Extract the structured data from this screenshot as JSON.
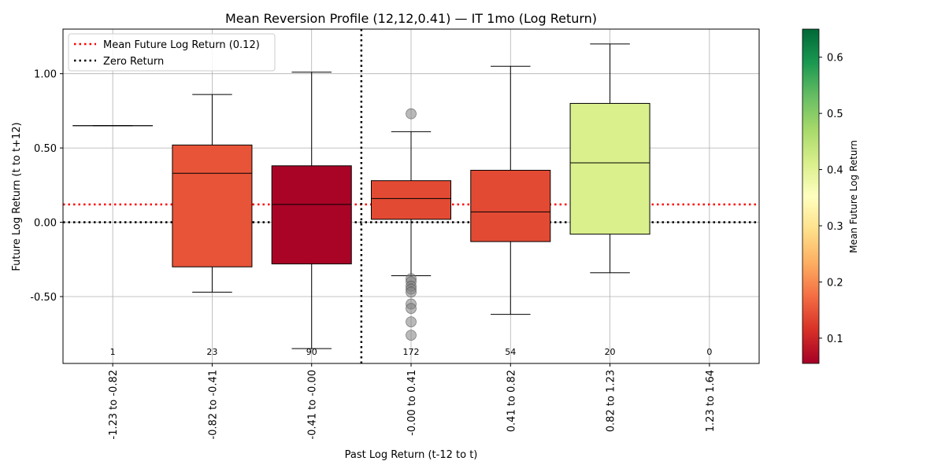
{
  "chart_data": {
    "type": "box",
    "title": "Mean Reversion Profile (12,12,0.41) — IT 1mo (Log Return)",
    "xlabel": "Past Log Return (t-12 to t)",
    "ylabel": "Future Log Return (t to t+12)",
    "ylim": [
      -0.95,
      1.3
    ],
    "yticks": [
      -0.5,
      0.0,
      0.5,
      1.0
    ],
    "ytick_labels": [
      "-0.50",
      "0.00",
      "0.50",
      "1.00"
    ],
    "grid": true,
    "categories": [
      "-1.23 to -0.82",
      "-0.82 to -0.41",
      "-0.41 to -0.00",
      "-0.00 to 0.41",
      "0.41 to 0.82",
      "0.82 to 1.23",
      "1.23 to 1.64"
    ],
    "boxes": [
      {
        "category": "-1.23 to -0.82",
        "count": "1",
        "whisker_low": 0.65,
        "q1": 0.65,
        "median": 0.65,
        "q3": 0.65,
        "whisker_high": 0.65,
        "mean": 0.65,
        "outliers": []
      },
      {
        "category": "-0.82 to -0.41",
        "count": "23",
        "whisker_low": -0.47,
        "q1": -0.3,
        "median": 0.33,
        "q3": 0.52,
        "whisker_high": 0.86,
        "mean": 0.15,
        "outliers": []
      },
      {
        "category": "-0.41 to -0.00",
        "count": "90",
        "whisker_low": -0.85,
        "q1": -0.28,
        "median": 0.12,
        "q3": 0.38,
        "whisker_high": 1.01,
        "mean": 0.06,
        "outliers": []
      },
      {
        "category": "-0.00 to 0.41",
        "count": "172",
        "whisker_low": -0.36,
        "q1": 0.02,
        "median": 0.16,
        "q3": 0.28,
        "whisker_high": 0.61,
        "mean": 0.14,
        "outliers": [
          0.73,
          -0.38,
          -0.4,
          -0.43,
          -0.45,
          -0.47,
          -0.55,
          -0.58,
          -0.67,
          -0.76
        ]
      },
      {
        "category": "0.41 to 0.82",
        "count": "54",
        "whisker_low": -0.62,
        "q1": -0.13,
        "median": 0.07,
        "q3": 0.35,
        "whisker_high": 1.05,
        "mean": 0.14,
        "outliers": []
      },
      {
        "category": "0.82 to 1.23",
        "count": "20",
        "whisker_low": -0.34,
        "q1": -0.08,
        "median": 0.4,
        "q3": 0.8,
        "whisker_high": 1.2,
        "mean": 0.41,
        "outliers": []
      },
      {
        "category": "1.23 to 1.64",
        "count": "0",
        "whisker_low": null,
        "q1": null,
        "median": null,
        "q3": null,
        "whisker_high": null,
        "mean": null,
        "outliers": []
      }
    ],
    "reference_lines": {
      "horizontal": [
        {
          "name": "Mean Future Log Return (0.12)",
          "y": 0.12,
          "color": "#ff0000",
          "style": "dotted"
        },
        {
          "name": "Zero Return",
          "y": 0.0,
          "color": "#000000",
          "style": "dotted"
        }
      ],
      "vertical": {
        "position": "between -0.41 to -0.00 and -0.00 to 0.41",
        "color": "#000000",
        "style": "dotted"
      }
    },
    "legend": {
      "placement": "top-left",
      "entries": [
        "Mean Future Log Return (0.12)",
        "Zero Return"
      ]
    },
    "colorbar": {
      "label": "Mean Future Log Return",
      "range": [
        0.055,
        0.65
      ],
      "ticks": [
        0.1,
        0.2,
        0.3,
        0.4,
        0.5,
        0.6
      ],
      "tick_labels": [
        "0.1",
        "0.2",
        "0.3",
        "0.4",
        "0.5",
        "0.6"
      ],
      "colormap": "RdYlGn"
    }
  }
}
